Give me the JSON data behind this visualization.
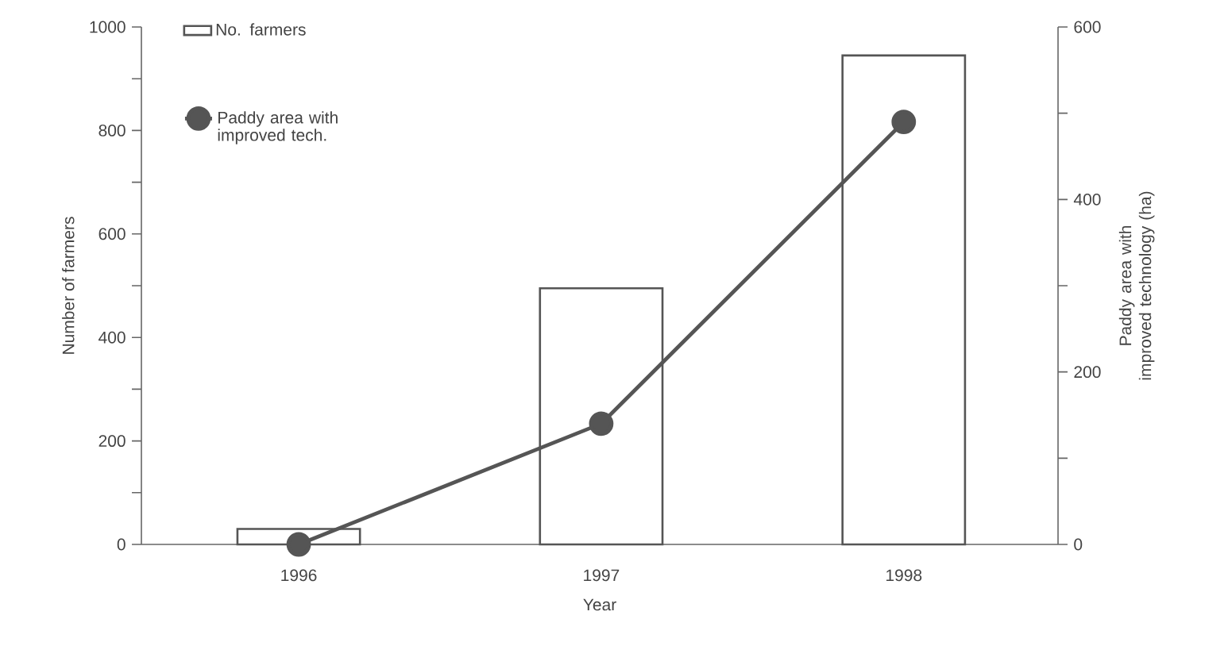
{
  "chart_data": {
    "type": "bar",
    "xlabel": "Year",
    "ylabel": "Number of farmers",
    "y2label": "Paddy area with improved technology (ha)",
    "categories": [
      "1996",
      "1997",
      "1998"
    ],
    "series": [
      {
        "name": "No. farmers",
        "color": "#555555",
        "values": [
          30,
          495,
          945
        ]
      },
      {
        "name": "Paddy area with improved tech.",
        "type": "line",
        "axis": "y2",
        "color": "#555555",
        "values": [
          0,
          140,
          490
        ]
      }
    ],
    "ylim": [
      0,
      1000
    ],
    "yticks": [
      0,
      {
        "value": 100,
        "label": null
      },
      200,
      {
        "value": 300,
        "label": null
      },
      400,
      {
        "value": 500,
        "label": null
      },
      600,
      {
        "value": 700,
        "label": null
      },
      800,
      {
        "value": 900,
        "label": null
      },
      1000
    ],
    "y2lim": [
      0,
      600
    ],
    "y2ticks": [
      0,
      {
        "value": 100,
        "label": null
      },
      200,
      {
        "value": 300,
        "label": null
      },
      400,
      {
        "value": 500,
        "label": null
      },
      600
    ],
    "legend": "top left",
    "marker": "circle",
    "line_style": "solid",
    "grid": false
  }
}
